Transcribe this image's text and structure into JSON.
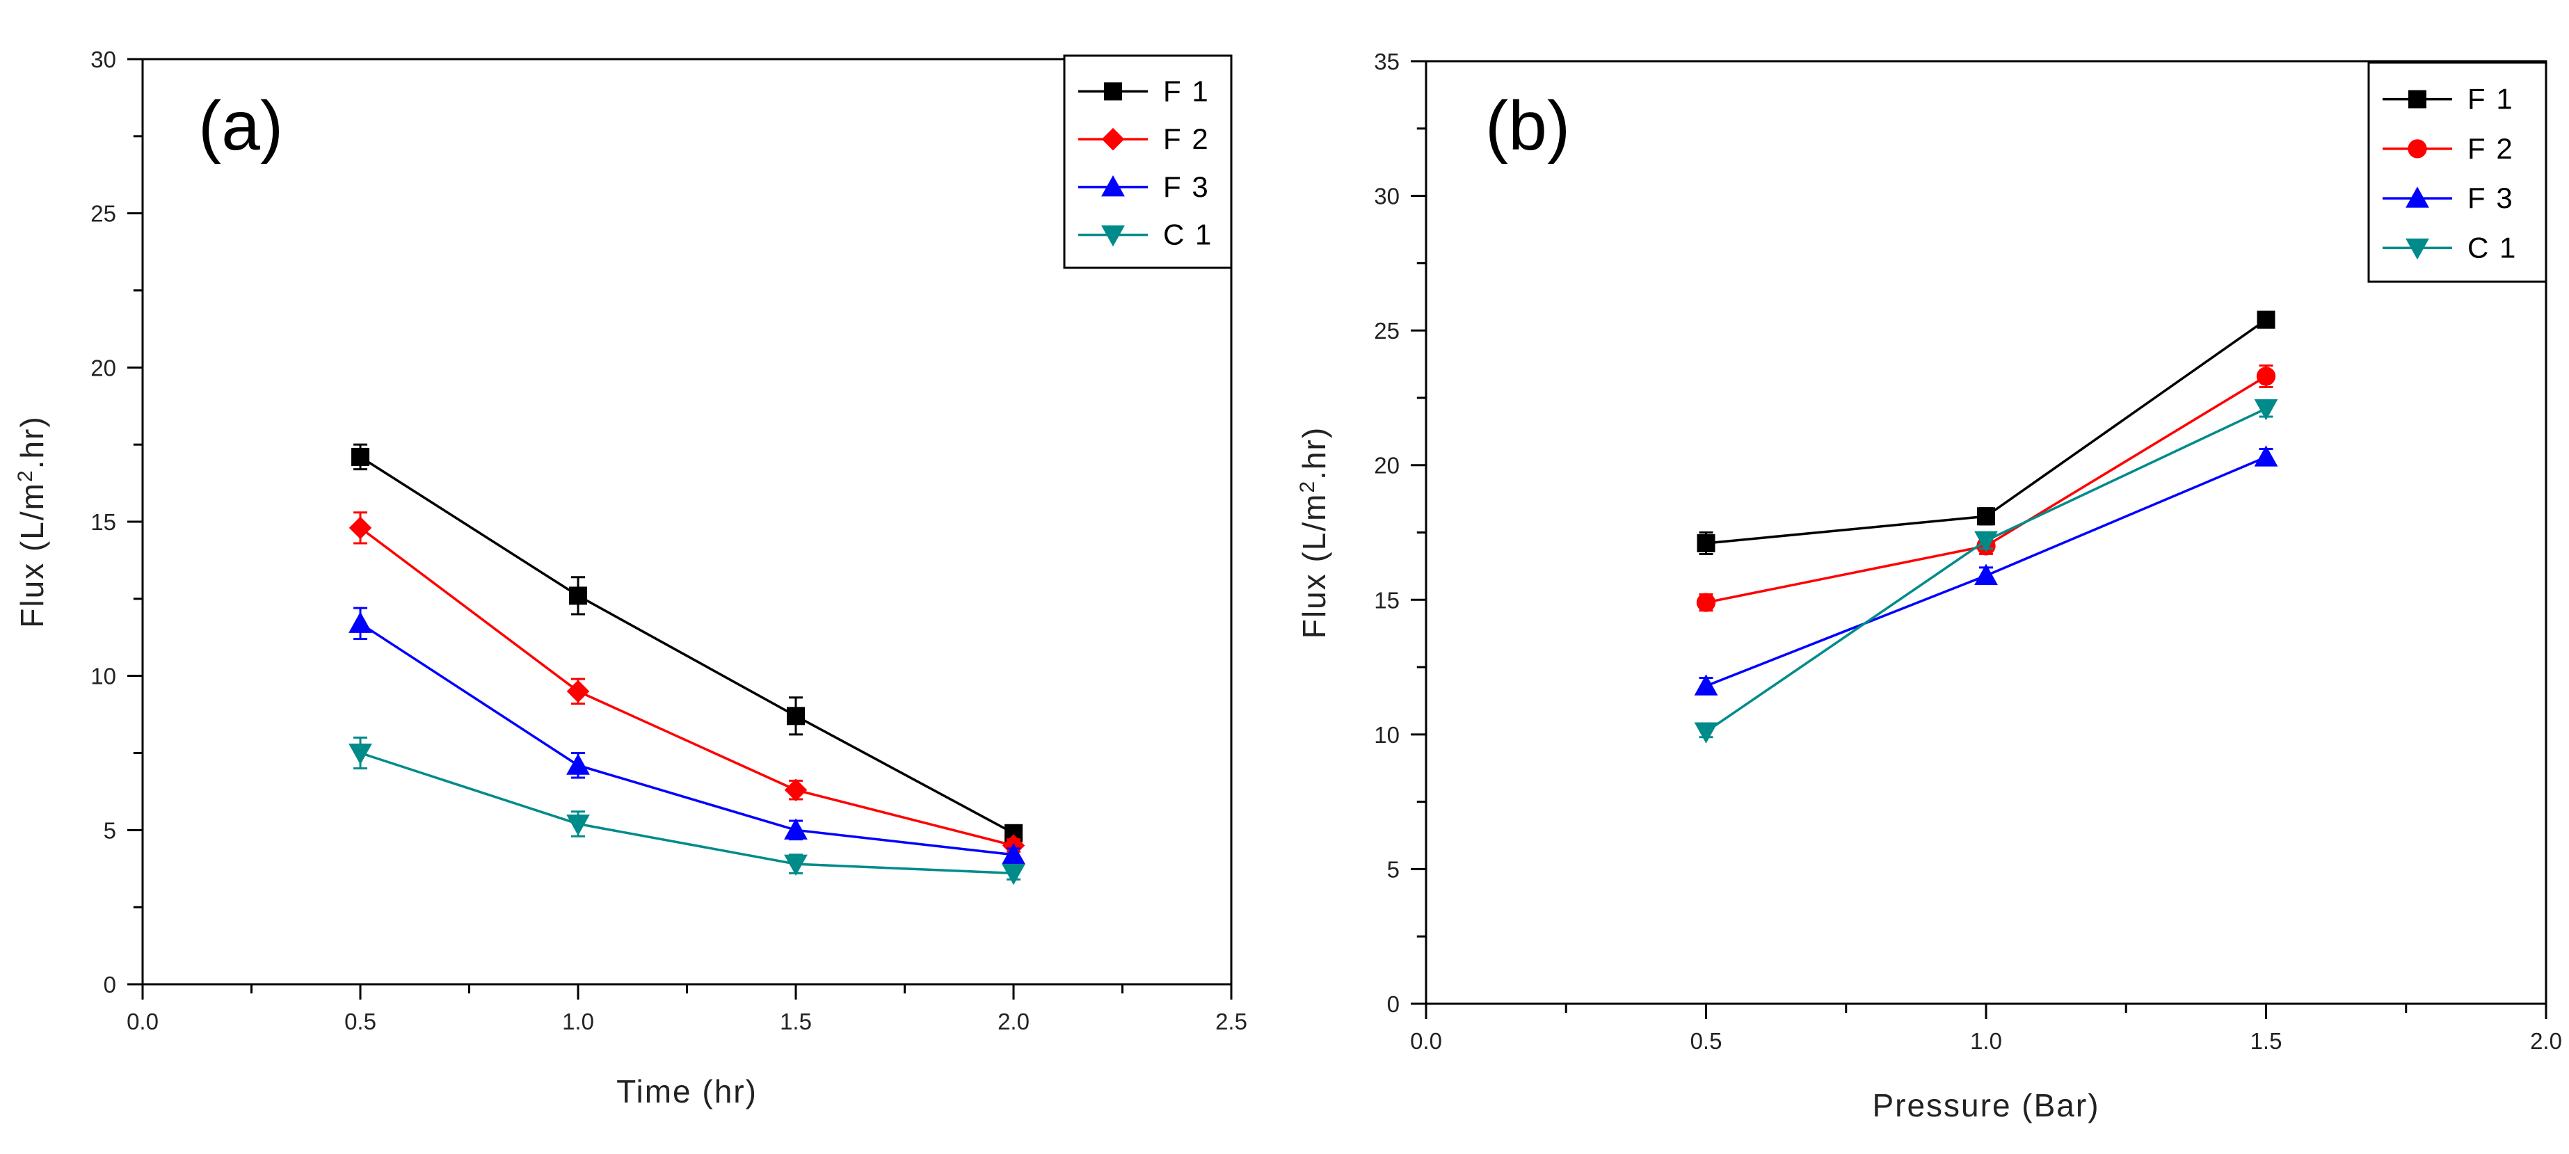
{
  "chart_data": [
    {
      "type": "line",
      "panel_label": "(a)",
      "xlabel": "Time (hr)",
      "ylabel_parts": [
        "Flux (L/m",
        "2",
        ".hr)"
      ],
      "xlim": [
        0,
        2.5
      ],
      "ylim": [
        0,
        30
      ],
      "x_ticks": [
        0,
        0.5,
        1,
        1.5,
        2,
        2.5
      ],
      "x_tick_labels": [
        "0.0",
        "0.5",
        "1.0",
        "1.5",
        "2.0",
        "2.5"
      ],
      "y_ticks": [
        0,
        5,
        10,
        15,
        20,
        25,
        30
      ],
      "y_tick_labels": [
        "0",
        "5",
        "10",
        "15",
        "20",
        "25",
        "30"
      ],
      "legend_position": "top-right",
      "grid": false,
      "x": [
        0.5,
        1.0,
        1.5,
        2.0
      ],
      "series": [
        {
          "name": "F 1",
          "color": "#000000",
          "marker": "square",
          "values": [
            17.1,
            12.6,
            8.7,
            4.9
          ],
          "errors": [
            0.4,
            0.6,
            0.6,
            0.2
          ]
        },
        {
          "name": "F 2",
          "color": "#ff0000",
          "marker": "diamond",
          "values": [
            14.8,
            9.5,
            6.3,
            4.5
          ],
          "errors": [
            0.5,
            0.4,
            0.3,
            0.2
          ]
        },
        {
          "name": "F 3",
          "color": "#0000ff",
          "marker": "triangle-up",
          "values": [
            11.7,
            7.1,
            5.0,
            4.2
          ],
          "errors": [
            0.5,
            0.4,
            0.3,
            0.2
          ]
        },
        {
          "name": "C 1",
          "color": "#008b8b",
          "marker": "triangle-down",
          "values": [
            7.5,
            5.2,
            3.9,
            3.6
          ],
          "errors": [
            0.5,
            0.4,
            0.3,
            0.2
          ]
        }
      ]
    },
    {
      "type": "line",
      "panel_label": "(b)",
      "xlabel": "Pressure (Bar)",
      "ylabel_parts": [
        "Flux (L/m",
        "2",
        ".hr)"
      ],
      "xlim": [
        0,
        2.0
      ],
      "ylim": [
        0,
        35
      ],
      "x_ticks": [
        0,
        0.5,
        1,
        1.5,
        2
      ],
      "x_tick_labels": [
        "0.0",
        "0.5",
        "1.0",
        "1.5",
        "2.0"
      ],
      "y_ticks": [
        0,
        5,
        10,
        15,
        20,
        25,
        30,
        35
      ],
      "y_tick_labels": [
        "0",
        "5",
        "10",
        "15",
        "20",
        "25",
        "30",
        "35"
      ],
      "legend_position": "top-right",
      "grid": false,
      "x": [
        0.5,
        1.0,
        1.5
      ],
      "series": [
        {
          "name": "F 1",
          "color": "#000000",
          "marker": "square",
          "values": [
            17.1,
            18.1,
            25.4
          ],
          "errors": [
            0.4,
            0.3,
            0.2
          ]
        },
        {
          "name": "F 2",
          "color": "#ff0000",
          "marker": "circle",
          "values": [
            14.9,
            17.0,
            23.3
          ],
          "errors": [
            0.3,
            0.3,
            0.4
          ]
        },
        {
          "name": "F 3",
          "color": "#0000ff",
          "marker": "triangle-up",
          "values": [
            11.8,
            15.9,
            20.3
          ],
          "errors": [
            0.3,
            0.3,
            0.3
          ]
        },
        {
          "name": "C 1",
          "color": "#008b8b",
          "marker": "triangle-down",
          "values": [
            10.1,
            17.2,
            22.1
          ],
          "errors": [
            0.2,
            0.3,
            0.3
          ]
        }
      ]
    }
  ]
}
